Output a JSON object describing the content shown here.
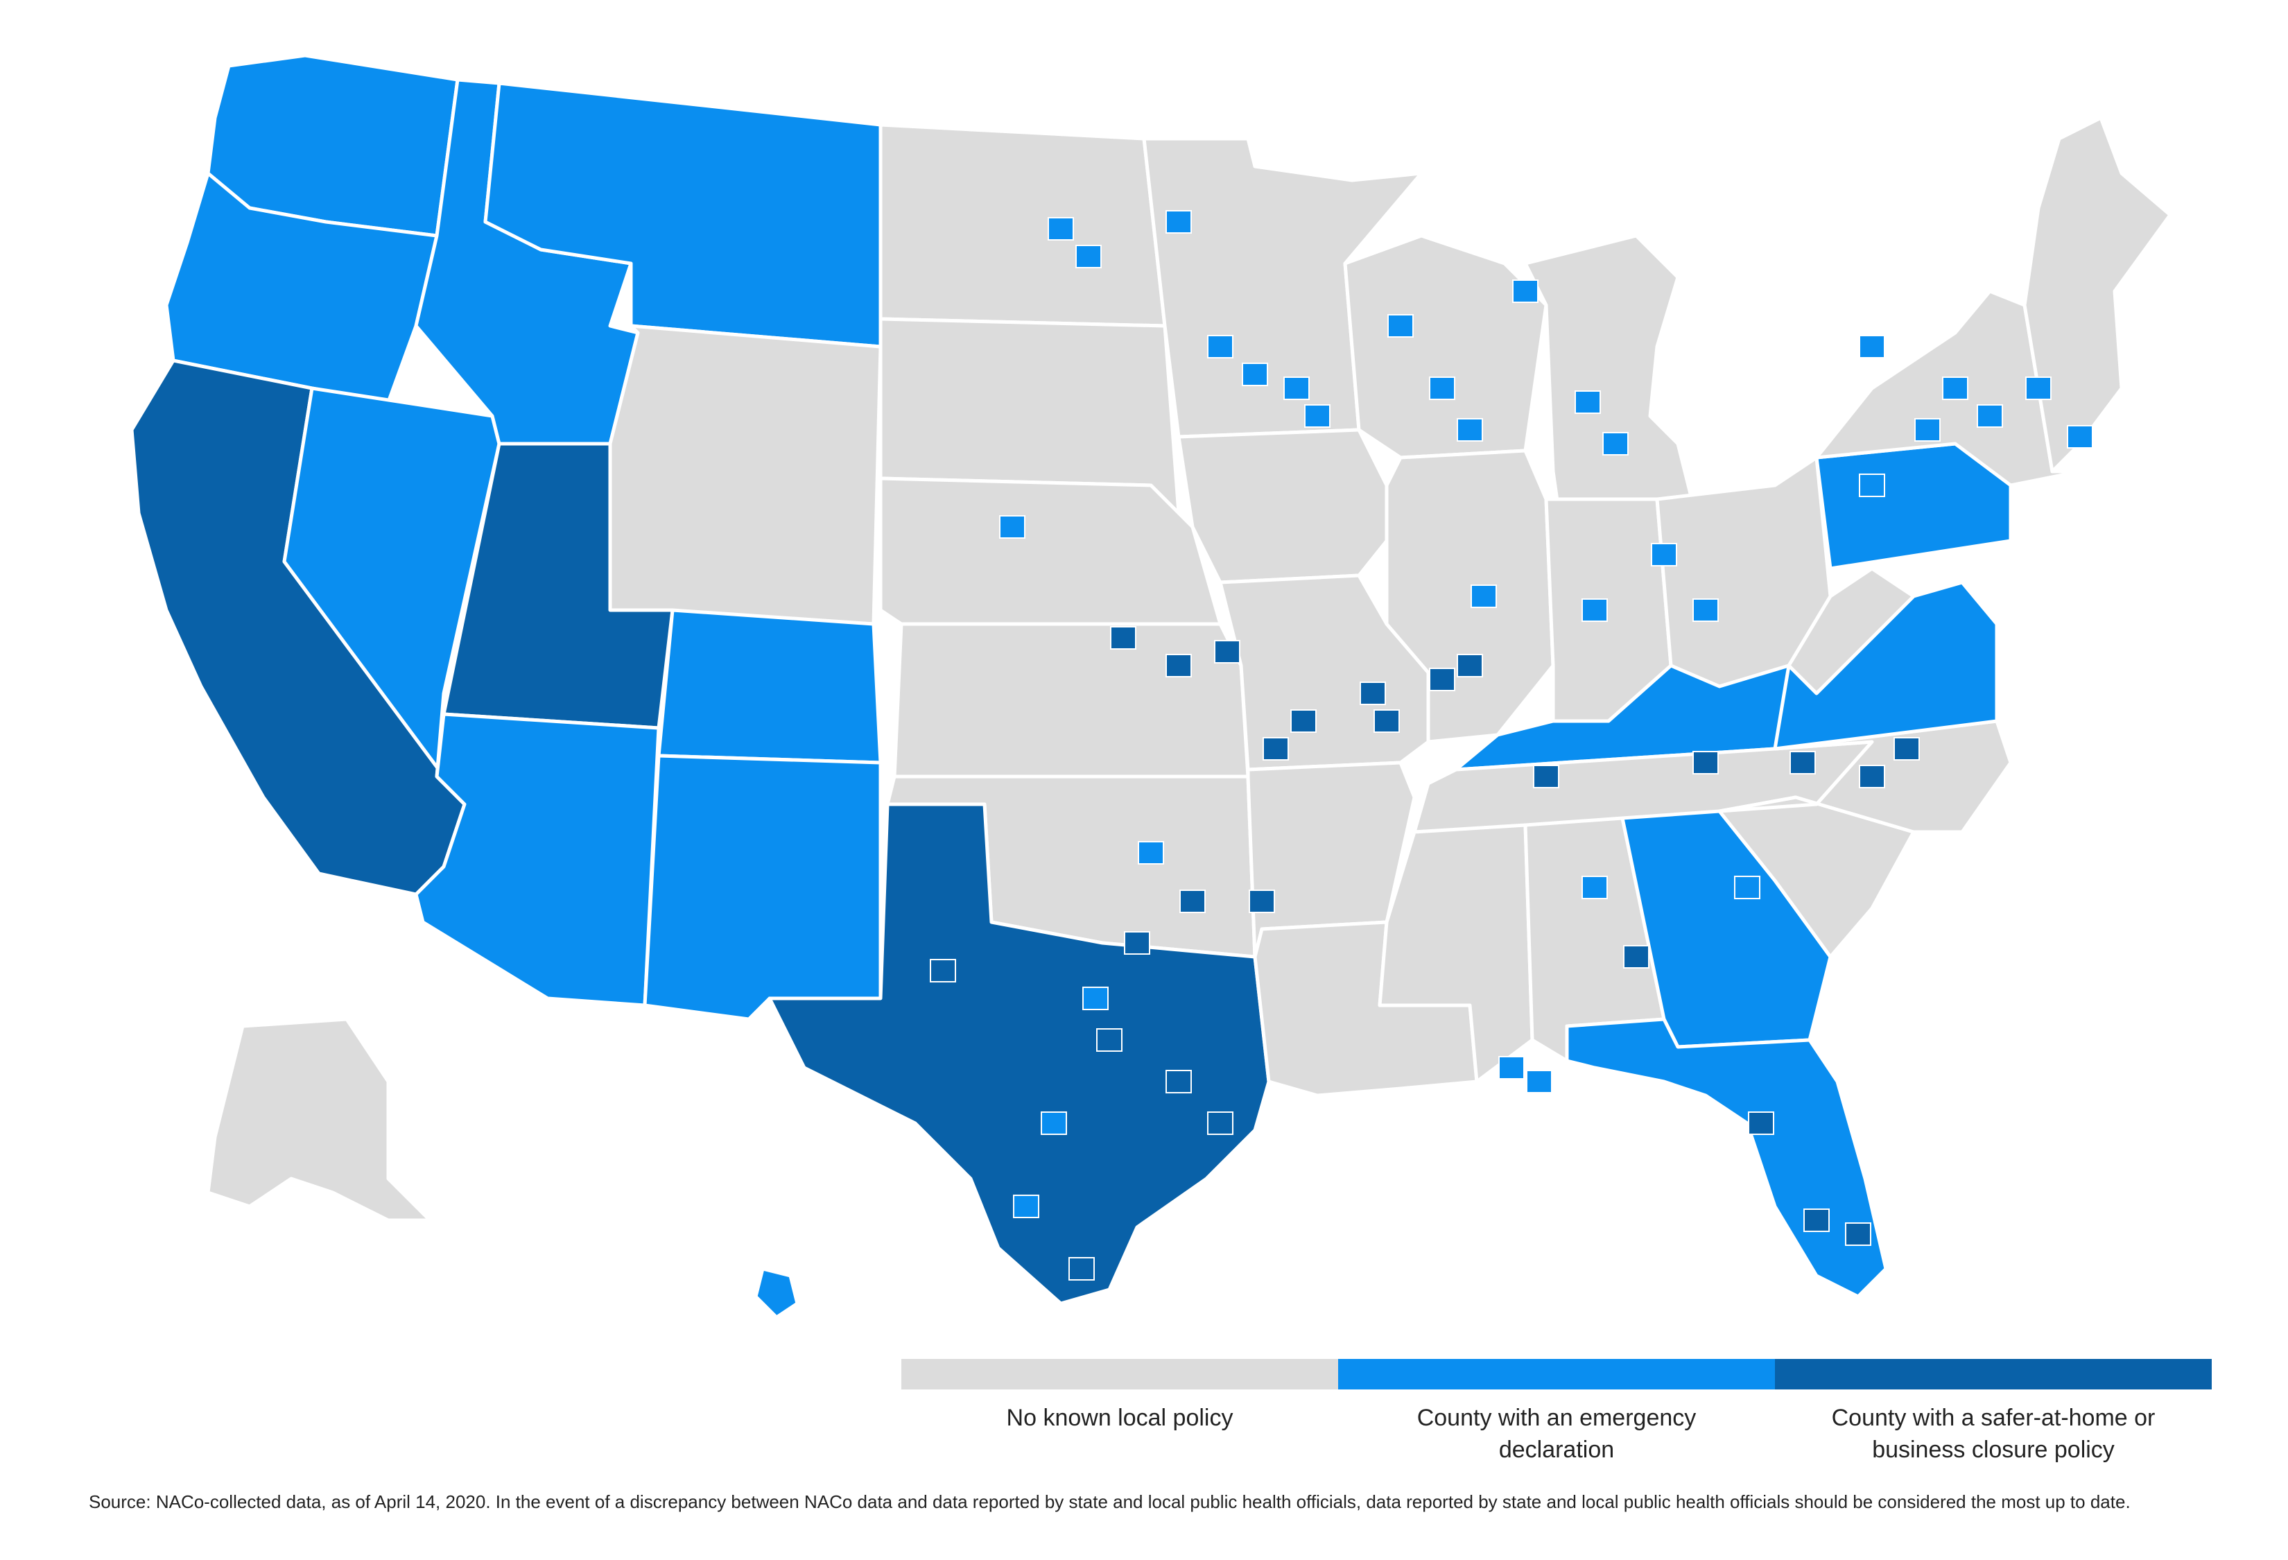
{
  "map": {
    "region": "United States counties",
    "colors": {
      "none": "#dcdcdc",
      "emergency": "#0a8ef0",
      "safer": "#0961a8",
      "border": "#ffffff"
    },
    "states": [
      {
        "name": "Washington",
        "status": "emergency"
      },
      {
        "name": "Oregon",
        "status": "emergency"
      },
      {
        "name": "California",
        "status": "safer"
      },
      {
        "name": "Nevada",
        "status": "emergency"
      },
      {
        "name": "Idaho",
        "status": "emergency"
      },
      {
        "name": "Montana",
        "status": "emergency"
      },
      {
        "name": "Wyoming",
        "status": "none"
      },
      {
        "name": "Utah",
        "status": "safer"
      },
      {
        "name": "Colorado",
        "status": "emergency"
      },
      {
        "name": "Arizona",
        "status": "emergency"
      },
      {
        "name": "New Mexico",
        "status": "emergency"
      },
      {
        "name": "North Dakota",
        "status": "none"
      },
      {
        "name": "South Dakota",
        "status": "none"
      },
      {
        "name": "Nebraska",
        "status": "none"
      },
      {
        "name": "Kansas",
        "status": "none"
      },
      {
        "name": "Oklahoma",
        "status": "none"
      },
      {
        "name": "Texas",
        "status": "safer"
      },
      {
        "name": "Minnesota",
        "status": "none"
      },
      {
        "name": "Iowa",
        "status": "none"
      },
      {
        "name": "Missouri",
        "status": "none"
      },
      {
        "name": "Arkansas",
        "status": "none"
      },
      {
        "name": "Louisiana",
        "status": "none"
      },
      {
        "name": "Wisconsin",
        "status": "none"
      },
      {
        "name": "Illinois",
        "status": "none"
      },
      {
        "name": "Michigan",
        "status": "none"
      },
      {
        "name": "Indiana",
        "status": "none"
      },
      {
        "name": "Ohio",
        "status": "none"
      },
      {
        "name": "Kentucky",
        "status": "emergency"
      },
      {
        "name": "Tennessee",
        "status": "none"
      },
      {
        "name": "Mississippi",
        "status": "none"
      },
      {
        "name": "Alabama",
        "status": "none"
      },
      {
        "name": "Georgia",
        "status": "emergency"
      },
      {
        "name": "Florida",
        "status": "emergency"
      },
      {
        "name": "South Carolina",
        "status": "none"
      },
      {
        "name": "North Carolina",
        "status": "none"
      },
      {
        "name": "Virginia",
        "status": "emergency"
      },
      {
        "name": "West Virginia",
        "status": "none"
      },
      {
        "name": "Pennsylvania",
        "status": "emergency"
      },
      {
        "name": "New York",
        "status": "none"
      },
      {
        "name": "New England",
        "status": "none"
      },
      {
        "name": "Alaska",
        "status": "none"
      },
      {
        "name": "Hawaii",
        "status": "emergency"
      }
    ]
  },
  "legend": {
    "items": [
      {
        "key": "none",
        "label": "No known local policy",
        "color": "#dcdcdc"
      },
      {
        "key": "emergency",
        "label": "County with an emergency declaration",
        "color": "#0a8ef0"
      },
      {
        "key": "safer",
        "label": "County with a safer-at-home or business closure policy",
        "color": "#0961a8"
      }
    ]
  },
  "source": "Source: NACo-collected data, as of April 14, 2020. In the event of a discrepancy between NACo data and data reported by state and local public health officials, data reported by state and local public health officials should be considered the most up to date."
}
